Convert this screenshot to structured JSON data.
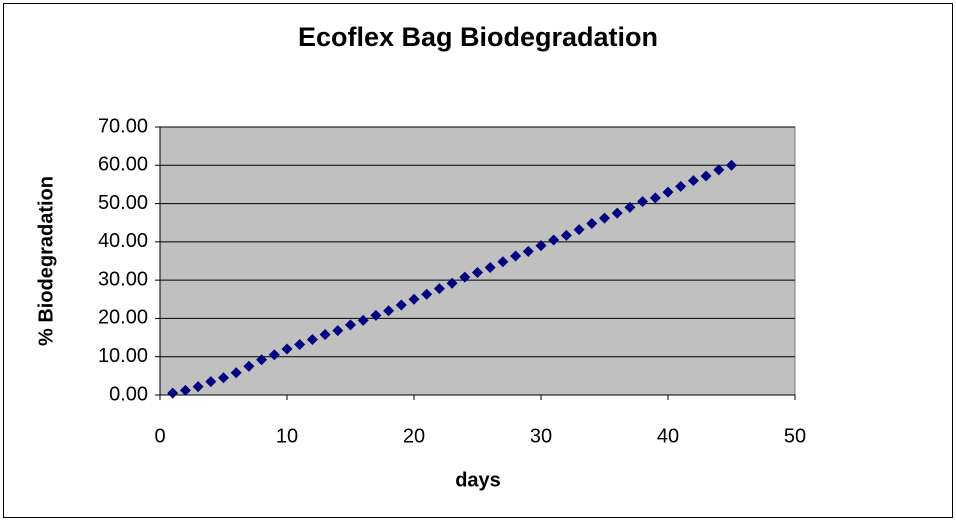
{
  "chart_data": {
    "type": "scatter",
    "title": "Ecoflex Bag Biodegradation",
    "x_label": "days",
    "y_label": "% Biodegradation",
    "x": [
      1,
      2,
      3,
      4,
      5,
      6,
      7,
      8,
      9,
      10,
      11,
      12,
      13,
      14,
      15,
      16,
      17,
      18,
      19,
      20,
      21,
      22,
      23,
      24,
      25,
      26,
      27,
      28,
      29,
      30,
      31,
      32,
      33,
      34,
      35,
      36,
      37,
      38,
      39,
      40,
      41,
      42,
      43,
      44,
      45
    ],
    "values": [
      0.5,
      1.2,
      2.2,
      3.5,
      4.5,
      5.8,
      7.5,
      9.2,
      10.5,
      12,
      13.2,
      14.5,
      15.8,
      16.8,
      18.3,
      19.5,
      20.8,
      22,
      23.5,
      25,
      26.3,
      27.8,
      29.2,
      30.8,
      32,
      33.3,
      34.8,
      36.3,
      37.5,
      39,
      40.5,
      41.7,
      43.2,
      44.8,
      46.2,
      47.5,
      49,
      50.5,
      51.5,
      53,
      54.5,
      56,
      57.2,
      58.8,
      60
    ],
    "color": "#000080",
    "xlim": [
      0,
      50
    ],
    "xticks": [
      0,
      10,
      20,
      30,
      40,
      50
    ],
    "ylim": [
      0,
      70
    ],
    "yticks": [
      {
        "value": 0,
        "label": "0.00"
      },
      {
        "value": 10,
        "label": "10.00"
      },
      {
        "value": 20,
        "label": "20.00"
      },
      {
        "value": 30,
        "label": "30.00"
      },
      {
        "value": 40,
        "label": "40.00"
      },
      {
        "value": 50,
        "label": "50.00"
      },
      {
        "value": 60,
        "label": "60.00"
      },
      {
        "value": 70,
        "label": "70.00"
      }
    ],
    "grid": true,
    "plot_background": "#c0c0c0"
  }
}
